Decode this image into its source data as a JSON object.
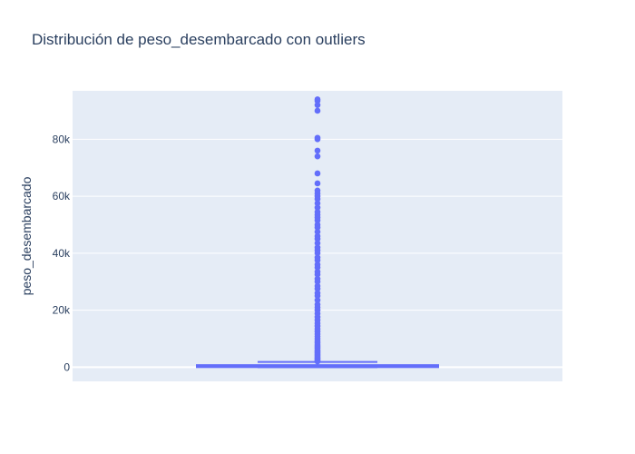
{
  "chart_data": {
    "type": "box",
    "title": "Distribución de peso_desembarcado con outliers",
    "xlabel": "",
    "ylabel": "peso_desembarcado",
    "ylim": [
      -5000,
      97000
    ],
    "yticks": [
      {
        "value": 0,
        "label": "0"
      },
      {
        "value": 20000,
        "label": "20k"
      },
      {
        "value": 40000,
        "label": "40k"
      },
      {
        "value": 60000,
        "label": "60k"
      },
      {
        "value": 80000,
        "label": "80k"
      }
    ],
    "grid": true,
    "colors": {
      "box": "#636efa",
      "plot_bg": "#e5ecf6",
      "grid": "#ffffff",
      "text": "#2a3f5f"
    },
    "series": [
      {
        "q1": 0,
        "median": 400,
        "q3": 700,
        "upper_fence": 1800,
        "lower_fence": 0,
        "outliers": [
          2000,
          2400,
          2800,
          3200,
          3600,
          4000,
          4500,
          5000,
          5500,
          6000,
          6600,
          7200,
          7800,
          8500,
          9200,
          10000,
          10800,
          11600,
          12500,
          13400,
          14400,
          15400,
          16500,
          17600,
          18800,
          20000,
          21000,
          22000,
          23500,
          25000,
          26000,
          27500,
          28500,
          30000,
          31000,
          32500,
          33500,
          35000,
          36000,
          37500,
          38500,
          40000,
          41000,
          42000,
          43500,
          45000,
          46000,
          47500,
          49000,
          50000,
          51500,
          52500,
          53500,
          54500,
          56000,
          57500,
          59000,
          60000,
          61000,
          62000,
          64500,
          68000,
          74000,
          76000,
          80000,
          80500,
          90000,
          92000,
          93500,
          94000
        ]
      }
    ]
  }
}
